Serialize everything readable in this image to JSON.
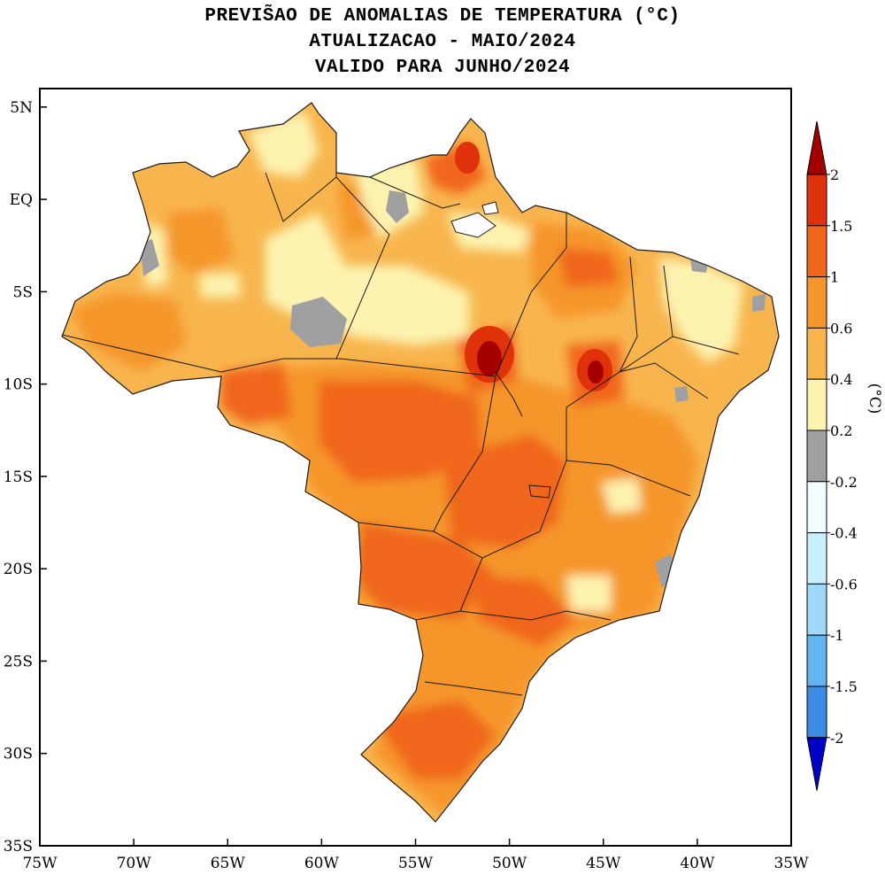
{
  "title": {
    "line1": "PREVIS̃AO DE ANOMALIAS DE TEMPERATURA (°C)",
    "line2": "ATUALIZACAO - MAIO/2024",
    "line3": "VALIDO PARA JUNHO/2024"
  },
  "map": {
    "lat_labels": [
      "5N",
      "EQ",
      "5S",
      "10S",
      "15S",
      "20S",
      "25S",
      "30S",
      "35S"
    ],
    "lon_labels": [
      "75W",
      "70W",
      "65W",
      "60W",
      "55W",
      "50W",
      "45W",
      "40W",
      "35W"
    ],
    "lat_range": [
      -35,
      6
    ],
    "lon_range": [
      -75,
      -35
    ]
  },
  "colorbar": {
    "unit_label": "(°C)",
    "ticks": [
      "2",
      "1.5",
      "1",
      "0.6",
      "0.4",
      "0.2",
      "-0.2",
      "-0.4",
      "-0.6",
      "-1",
      "-1.5",
      "-2"
    ],
    "colors": {
      "above_2": "#a50000",
      "1.5_2": "#e0320a",
      "1_1.5": "#f0661b",
      "0.6_1": "#f5962c",
      "0.4_0.6": "#f8b54e",
      "0.2_0.4": "#fcf3b0",
      "-0.2_0.2": "#a0a0a0",
      "-0.4_-0.2": "#f0fcff",
      "-0.6_-0.4": "#c8f0ff",
      "-1_-0.6": "#a0d8f8",
      "-1.5_-1": "#64b4f0",
      "-2_-1.5": "#3c8ce6",
      "below_-2": "#0000c8"
    }
  }
}
